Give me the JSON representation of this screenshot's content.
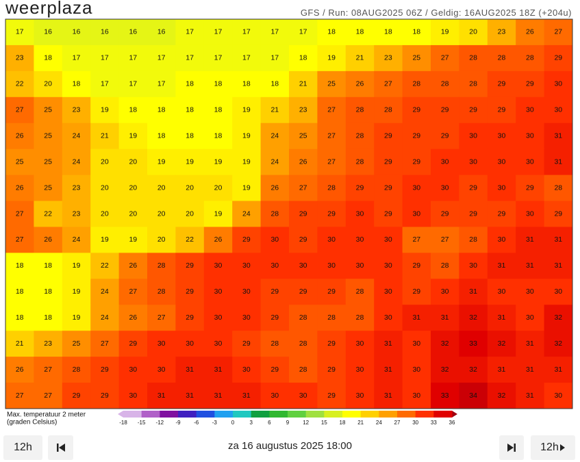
{
  "header": {
    "logo": "weerplaza",
    "info": "GFS / Run: 08AUG2025 06Z / Geldig: 16AUG2025 18Z (+204u)"
  },
  "map": {
    "grid": [
      [
        17,
        16,
        16,
        16,
        16,
        16,
        17,
        17,
        17,
        17,
        17,
        18,
        18,
        18,
        18,
        19,
        20,
        23,
        26,
        27
      ],
      [
        23,
        18,
        17,
        17,
        17,
        17,
        17,
        17,
        17,
        17,
        18,
        19,
        21,
        23,
        25,
        27,
        28,
        28,
        28,
        29
      ],
      [
        22,
        20,
        18,
        17,
        17,
        17,
        18,
        18,
        18,
        18,
        21,
        25,
        26,
        27,
        28,
        28,
        28,
        29,
        29,
        30
      ],
      [
        27,
        25,
        23,
        19,
        18,
        18,
        18,
        18,
        19,
        21,
        23,
        27,
        28,
        28,
        29,
        29,
        29,
        29,
        30,
        30
      ],
      [
        26,
        25,
        24,
        21,
        19,
        18,
        18,
        18,
        19,
        24,
        25,
        27,
        28,
        29,
        29,
        29,
        30,
        30,
        30,
        31
      ],
      [
        25,
        25,
        24,
        20,
        20,
        19,
        19,
        19,
        19,
        24,
        26,
        27,
        28,
        29,
        29,
        30,
        30,
        30,
        30,
        31
      ],
      [
        26,
        25,
        23,
        20,
        20,
        20,
        20,
        20,
        19,
        26,
        27,
        28,
        29,
        29,
        30,
        30,
        29,
        30,
        29,
        28
      ],
      [
        27,
        22,
        23,
        20,
        20,
        20,
        20,
        19,
        24,
        28,
        29,
        29,
        30,
        29,
        30,
        29,
        29,
        29,
        30,
        29
      ],
      [
        27,
        26,
        24,
        19,
        19,
        20,
        22,
        26,
        29,
        30,
        29,
        30,
        30,
        30,
        27,
        27,
        28,
        30,
        31,
        31
      ],
      [
        18,
        18,
        19,
        22,
        26,
        28,
        29,
        30,
        30,
        30,
        30,
        30,
        30,
        30,
        29,
        28,
        30,
        31,
        31,
        31
      ],
      [
        18,
        18,
        19,
        24,
        27,
        28,
        29,
        30,
        30,
        29,
        29,
        29,
        28,
        30,
        29,
        30,
        31,
        30,
        30,
        30
      ],
      [
        18,
        18,
        19,
        24,
        26,
        27,
        29,
        30,
        30,
        29,
        28,
        28,
        28,
        30,
        31,
        31,
        32,
        31,
        30,
        32
      ],
      [
        21,
        23,
        25,
        27,
        29,
        30,
        30,
        30,
        29,
        28,
        28,
        29,
        30,
        31,
        30,
        32,
        33,
        32,
        31,
        32
      ],
      [
        26,
        27,
        28,
        29,
        30,
        30,
        31,
        31,
        30,
        29,
        28,
        29,
        30,
        31,
        30,
        32,
        32,
        31,
        31,
        31
      ],
      [
        27,
        27,
        29,
        29,
        30,
        31,
        31,
        31,
        31,
        30,
        30,
        29,
        30,
        31,
        30,
        33,
        34,
        32,
        31,
        30
      ]
    ]
  },
  "legend": {
    "title": "Max. temperatuur 2 meter",
    "unit": "(graden Celsius)",
    "stops": [
      {
        "value": -18,
        "color": "#d8b4e8"
      },
      {
        "value": -15,
        "color": "#b060c8"
      },
      {
        "value": -12,
        "color": "#8010a0"
      },
      {
        "value": -9,
        "color": "#4020c0"
      },
      {
        "value": -6,
        "color": "#2050e0"
      },
      {
        "value": -3,
        "color": "#20a0f0"
      },
      {
        "value": 0,
        "color": "#20c8c0"
      },
      {
        "value": 3,
        "color": "#10a040"
      },
      {
        "value": 6,
        "color": "#30b830"
      },
      {
        "value": 9,
        "color": "#60d040"
      },
      {
        "value": 12,
        "color": "#a0e040"
      },
      {
        "value": 15,
        "color": "#d8f020"
      },
      {
        "value": 18,
        "color": "#ffff00"
      },
      {
        "value": 21,
        "color": "#ffd000"
      },
      {
        "value": 24,
        "color": "#ffa000"
      },
      {
        "value": 27,
        "color": "#ff6a00"
      },
      {
        "value": 30,
        "color": "#ff3000"
      },
      {
        "value": 33,
        "color": "#e00000"
      },
      {
        "value": 36,
        "color": "#a00010"
      }
    ]
  },
  "controls": {
    "back": "12h",
    "date": "za 16 augustus 2025 18:00",
    "forward": "12h"
  }
}
